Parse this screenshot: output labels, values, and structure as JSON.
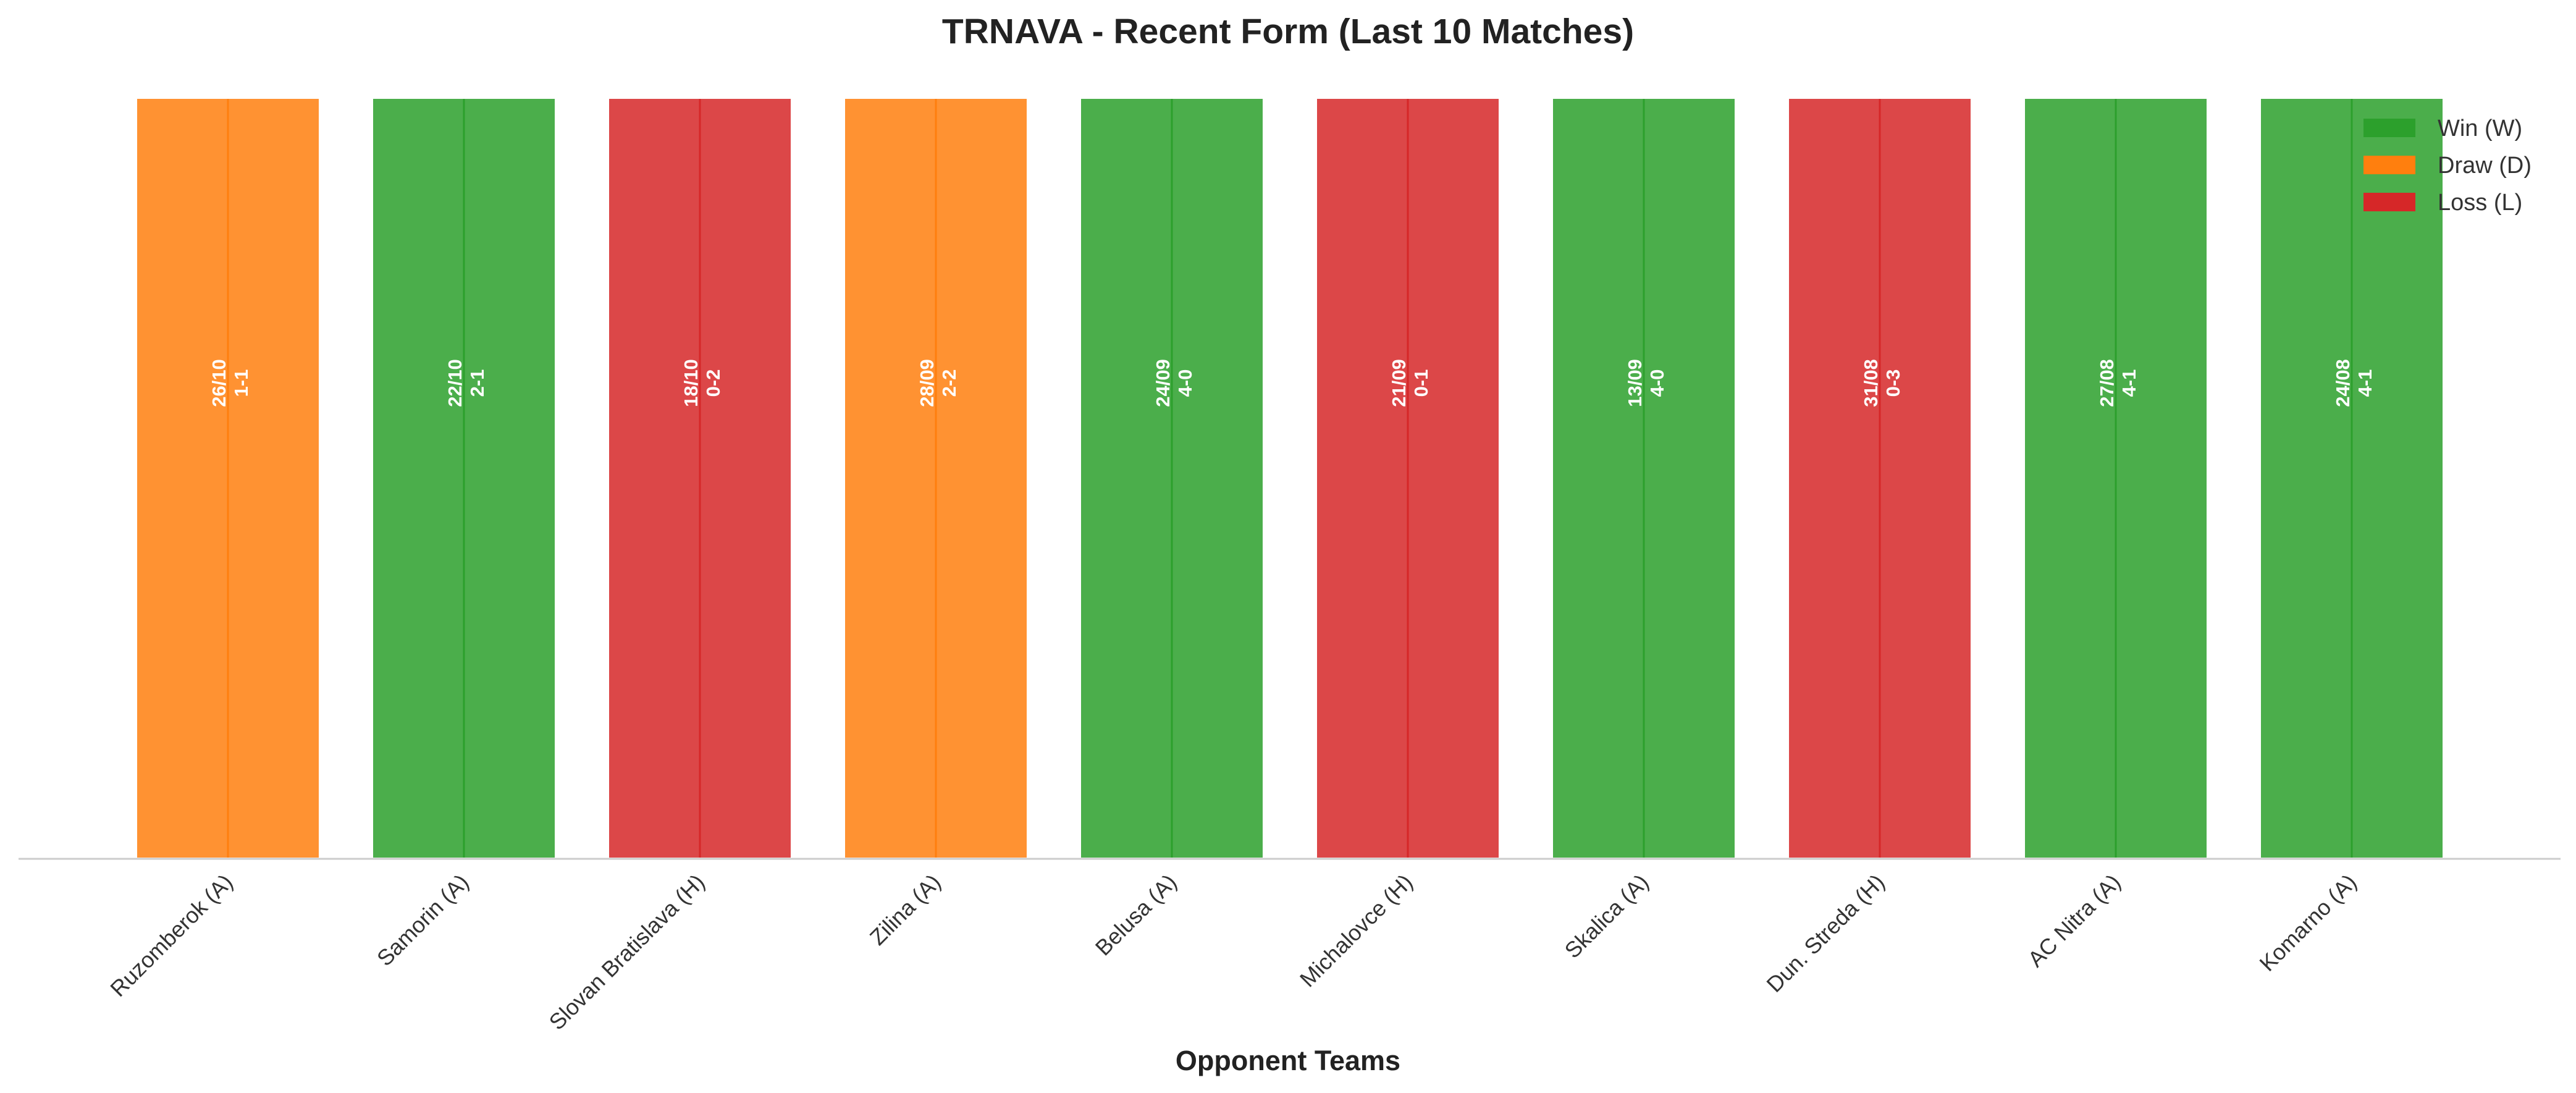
{
  "chart_data": {
    "type": "bar",
    "title": "TRNAVA - Recent Form (Last 10 Matches)",
    "xlabel": "Opponent Teams",
    "ylabel": "",
    "grid": false,
    "legend_placement": "top-right",
    "legend": [
      {
        "key": "W",
        "label": "Win (W)",
        "color": "#2ca02c"
      },
      {
        "key": "D",
        "label": "Draw (D)",
        "color": "#ff7f0e"
      },
      {
        "key": "L",
        "label": "Loss (L)",
        "color": "#d62728"
      }
    ],
    "categories": [
      "Ruzomberok (A)",
      "Samorin (A)",
      "Slovan Bratislava (H)",
      "Zilina (A)",
      "Belusa (A)",
      "Michalovce (H)",
      "Skalica (A)",
      "Dun. Streda (H)",
      "AC Nitra (A)",
      "Komarno (A)"
    ],
    "values": [
      1,
      1,
      1,
      1,
      1,
      1,
      1,
      1,
      1,
      1
    ],
    "results": [
      "D",
      "W",
      "L",
      "D",
      "W",
      "L",
      "W",
      "L",
      "W",
      "W"
    ],
    "dates": [
      "26/10",
      "22/10",
      "18/10",
      "28/09",
      "24/09",
      "21/09",
      "13/09",
      "31/08",
      "27/08",
      "24/08"
    ],
    "scores": [
      "1-1",
      "2-1",
      "0-2",
      "2-2",
      "4-0",
      "0-1",
      "4-0",
      "0-3",
      "4-1",
      "4-1"
    ]
  }
}
